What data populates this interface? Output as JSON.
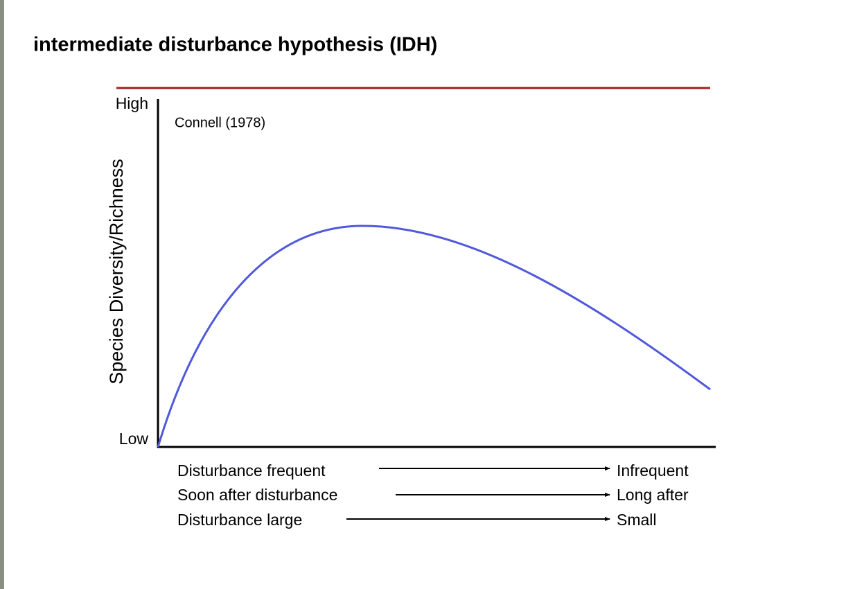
{
  "title": "intermediate disturbance hypothesis (IDH)",
  "diagram": {
    "y_axis": {
      "label": "Species Diversity/Richness",
      "high": "High",
      "low": "Low"
    },
    "annotation": "Connell (1978)",
    "x_gradients": [
      {
        "left": "Disturbance frequent",
        "right": "Infrequent"
      },
      {
        "left": "Soon after disturbance",
        "right": "Long after"
      },
      {
        "left": "Disturbance large",
        "right": "Small"
      }
    ]
  }
}
